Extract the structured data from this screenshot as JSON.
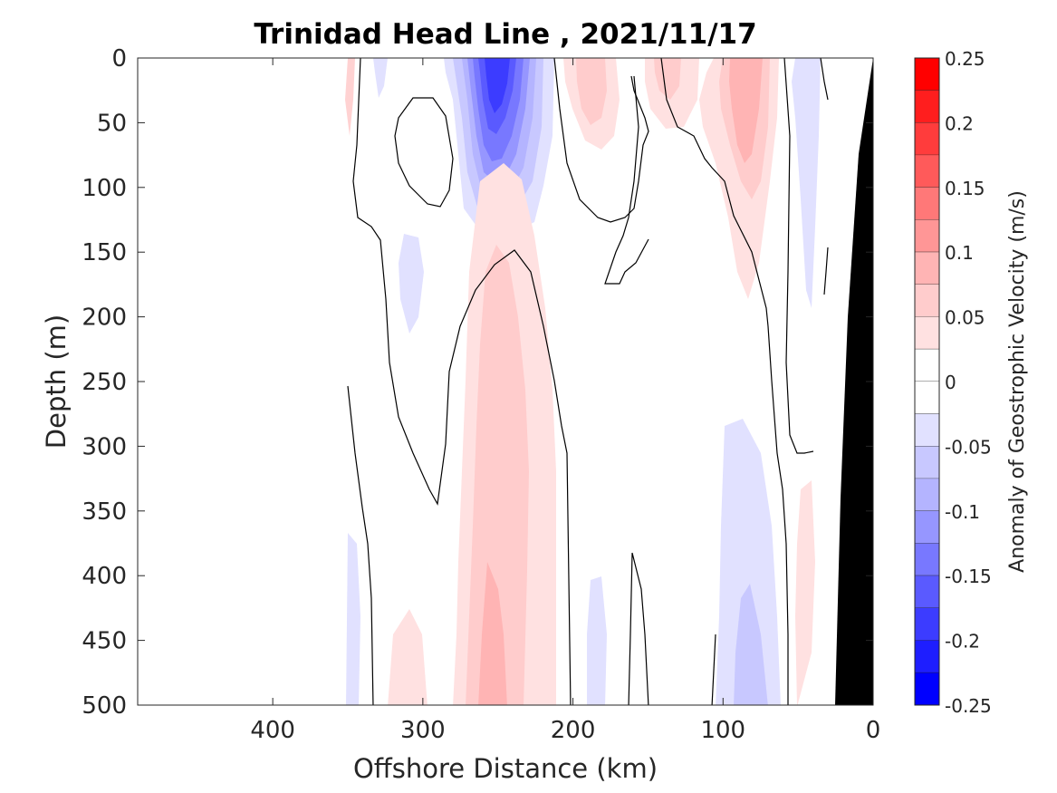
{
  "chart_data": {
    "type": "heatmap",
    "title": "Trinidad Head Line , 2021/11/17",
    "xlabel": "Offshore Distance (km)",
    "ylabel": "Depth (m)",
    "colorbar_label": "Anomaly of Geostrophic Velocity (m/s)",
    "x_reversed": true,
    "y_reversed": true,
    "xlim": [
      0,
      490
    ],
    "ylim": [
      0,
      500
    ],
    "x_ticks": [
      400,
      300,
      200,
      100,
      0
    ],
    "y_ticks": [
      0,
      50,
      100,
      150,
      200,
      250,
      300,
      350,
      400,
      450,
      500
    ],
    "colorbar": {
      "range": [
        -0.25,
        0.25
      ],
      "tick_labels": [
        "0.25",
        "0.2",
        "0.15",
        "0.1",
        "0.05",
        "0",
        "-0.05",
        "-0.1",
        "-0.15",
        "-0.2",
        "-0.25"
      ],
      "tick_values": [
        0.25,
        0.2,
        0.15,
        0.1,
        0.05,
        0,
        -0.05,
        -0.1,
        -0.15,
        -0.2,
        -0.25
      ],
      "levels": [
        {
          "min": 0.225,
          "max": 0.25,
          "color": "#ff0000"
        },
        {
          "min": 0.2,
          "max": 0.225,
          "color": "#ff1e1e"
        },
        {
          "min": 0.175,
          "max": 0.2,
          "color": "#ff3c3c"
        },
        {
          "min": 0.15,
          "max": 0.175,
          "color": "#ff5a5a"
        },
        {
          "min": 0.125,
          "max": 0.15,
          "color": "#ff7878"
        },
        {
          "min": 0.1,
          "max": 0.125,
          "color": "#ff9696"
        },
        {
          "min": 0.075,
          "max": 0.1,
          "color": "#ffb4b4"
        },
        {
          "min": 0.05,
          "max": 0.075,
          "color": "#ffcccc"
        },
        {
          "min": 0.025,
          "max": 0.05,
          "color": "#ffe1e1"
        },
        {
          "min": 0.0,
          "max": 0.025,
          "color": "#ffffff"
        },
        {
          "min": -0.025,
          "max": 0.0,
          "color": "#ffffff"
        },
        {
          "min": -0.05,
          "max": -0.025,
          "color": "#e1e1ff"
        },
        {
          "min": -0.075,
          "max": -0.05,
          "color": "#c8c8ff"
        },
        {
          "min": -0.1,
          "max": -0.075,
          "color": "#b4b4ff"
        },
        {
          "min": -0.125,
          "max": -0.1,
          "color": "#9696ff"
        },
        {
          "min": -0.15,
          "max": -0.125,
          "color": "#7878ff"
        },
        {
          "min": -0.175,
          "max": -0.15,
          "color": "#5a5aff"
        },
        {
          "min": -0.2,
          "max": -0.175,
          "color": "#3c3cff"
        },
        {
          "min": -0.225,
          "max": -0.2,
          "color": "#1e1eff"
        },
        {
          "min": -0.25,
          "max": -0.225,
          "color": "#0000ff"
        }
      ]
    },
    "anomaly_features": [
      {
        "label": "surface blue core",
        "center_km": 248,
        "center_depth_m": 30,
        "peak_value": -0.2
      },
      {
        "label": "mid-depth pink core",
        "center_km": 250,
        "center_depth_m": 420,
        "peak_value": 0.075
      },
      {
        "label": "upper pink",
        "center_km": 180,
        "center_depth_m": 40,
        "peak_value": 0.05
      },
      {
        "label": "upper pink near shore",
        "center_km": 90,
        "center_depth_m": 60,
        "peak_value": 0.075
      },
      {
        "label": "deep blue near shore",
        "center_km": 85,
        "center_depth_m": 450,
        "peak_value": -0.075
      }
    ],
    "bathymetry": {
      "color": "#000000",
      "points": [
        [
          0,
          0
        ],
        [
          25,
          500
        ],
        [
          0,
          500
        ]
      ]
    }
  }
}
